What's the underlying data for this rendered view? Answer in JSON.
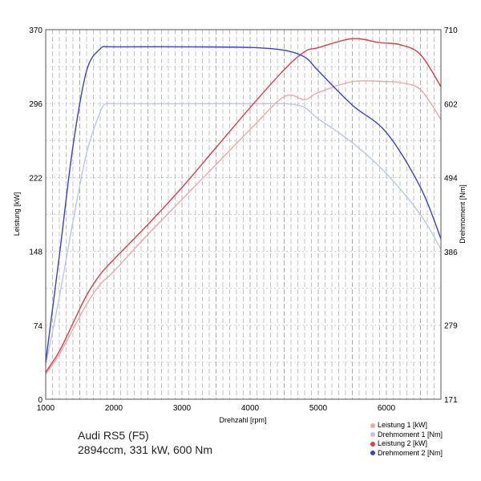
{
  "chart_data": {
    "type": "line",
    "title": "Audi RS5 (F5)",
    "subtitle": "2894ccm, 331 kW, 600 Nm",
    "xlabel": "Drehzahl [rpm]",
    "ylabel_left": "Leistung [kW]",
    "ylabel_right": "Drehmoment [Nm]",
    "xlim": [
      1000,
      6800
    ],
    "ylim_left": [
      0,
      370
    ],
    "ylim_right": [
      171,
      710
    ],
    "x_ticks": [
      1000,
      2000,
      3000,
      4000,
      5000,
      6000
    ],
    "y_ticks_left": [
      0,
      74,
      148,
      222,
      296,
      370
    ],
    "y_ticks_right": [
      171,
      279,
      386,
      494,
      602,
      710
    ],
    "grid": true,
    "legend_position": "bottom-right",
    "series": [
      {
        "name": "Leistung 1 [kW]",
        "axis": "left",
        "color": "#f2a7a7",
        "x": [
          1000,
          1200,
          1400,
          1600,
          1800,
          2000,
          2500,
          3000,
          3500,
          4000,
          4500,
          4800,
          5000,
          5500,
          6000,
          6200,
          6500,
          6800
        ],
        "y": [
          25,
          45,
          70,
          95,
          115,
          128,
          165,
          200,
          235,
          270,
          303,
          300,
          307,
          318,
          318,
          317,
          310,
          280
        ]
      },
      {
        "name": "Drehmoment 1 [Nm]",
        "axis": "right",
        "color": "#b9c6ef",
        "x": [
          1000,
          1200,
          1400,
          1600,
          1800,
          1900,
          2000,
          3000,
          4000,
          4700,
          5000,
          5500,
          6000,
          6500,
          6800
        ],
        "y": [
          221,
          320,
          430,
          530,
          590,
          603,
          602,
          602,
          602,
          600,
          580,
          545,
          500,
          440,
          390
        ]
      },
      {
        "name": "Leistung 2 [kW]",
        "axis": "left",
        "color": "#e23c45",
        "x": [
          1000,
          1200,
          1400,
          1600,
          1800,
          2000,
          2500,
          3000,
          3500,
          4000,
          4500,
          4800,
          5000,
          5500,
          5900,
          6200,
          6500,
          6800
        ],
        "y": [
          27,
          48,
          76,
          104,
          125,
          140,
          175,
          212,
          252,
          292,
          330,
          348,
          352,
          361,
          357,
          355,
          345,
          313
        ]
      },
      {
        "name": "Drehmoment 2 [Nm]",
        "axis": "right",
        "color": "#3a3ed8",
        "x": [
          1000,
          1200,
          1400,
          1600,
          1800,
          1900,
          2000,
          3000,
          4000,
          4500,
          4800,
          5000,
          5500,
          6000,
          6500,
          6800
        ],
        "y": [
          225,
          380,
          540,
          650,
          682,
          685,
          685,
          685,
          684,
          680,
          670,
          650,
          600,
          560,
          480,
          405
        ]
      }
    ]
  }
}
